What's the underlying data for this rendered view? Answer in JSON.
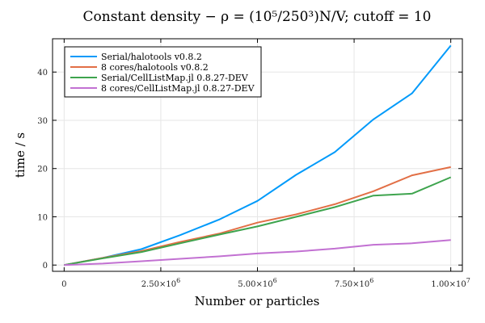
{
  "chart_data": {
    "type": "line",
    "title": "Constant density − ρ = (10⁵/250³)N/V;  cutoff = 10",
    "xlabel": "Number or particles",
    "ylabel": "time / s",
    "xlim": [
      -300000,
      10300000
    ],
    "ylim": [
      -1.3,
      46.9
    ],
    "grid": true,
    "legend_position": "top-left",
    "x_ticks": [
      {
        "value": 0,
        "mantissa": "0",
        "exponent": ""
      },
      {
        "value": 2500000,
        "mantissa": "2.50×10",
        "exponent": "6"
      },
      {
        "value": 5000000,
        "mantissa": "5.00×10",
        "exponent": "6"
      },
      {
        "value": 7500000,
        "mantissa": "7.50×10",
        "exponent": "6"
      },
      {
        "value": 10000000,
        "mantissa": "1.00×10",
        "exponent": "7"
      }
    ],
    "y_ticks": [
      {
        "value": 0,
        "label": "0"
      },
      {
        "value": 10,
        "label": "10"
      },
      {
        "value": 20,
        "label": "20"
      },
      {
        "value": 30,
        "label": "30"
      },
      {
        "value": 40,
        "label": "40"
      }
    ],
    "x": [
      0,
      1000000,
      2000000,
      3000000,
      4000000,
      5000000,
      6000000,
      7000000,
      8000000,
      9000000,
      10000000
    ],
    "series": [
      {
        "name": "Serial/halotools v0.8.2",
        "color": "#009AFA",
        "values": [
          0,
          1.5,
          3.3,
          6.2,
          9.4,
          13.3,
          18.7,
          23.4,
          30.2,
          35.6,
          45.5
        ]
      },
      {
        "name": "8 cores/halotools v0.8.2",
        "color": "#E26F46",
        "values": [
          0,
          1.5,
          2.9,
          4.8,
          6.5,
          8.8,
          10.5,
          12.6,
          15.3,
          18.6,
          20.3
        ]
      },
      {
        "name": "Serial/CellListMap.jl 0.8.27-DEV",
        "color": "#3EA44E",
        "values": [
          0,
          1.4,
          2.7,
          4.5,
          6.3,
          8.0,
          10.0,
          12.0,
          14.4,
          14.8,
          18.2
        ]
      },
      {
        "name": "8 cores/CellListMap.jl 0.8.27-DEV",
        "color": "#C271D2",
        "values": [
          0,
          0.3,
          0.8,
          1.3,
          1.8,
          2.4,
          2.8,
          3.4,
          4.2,
          4.5,
          5.2
        ]
      }
    ]
  }
}
